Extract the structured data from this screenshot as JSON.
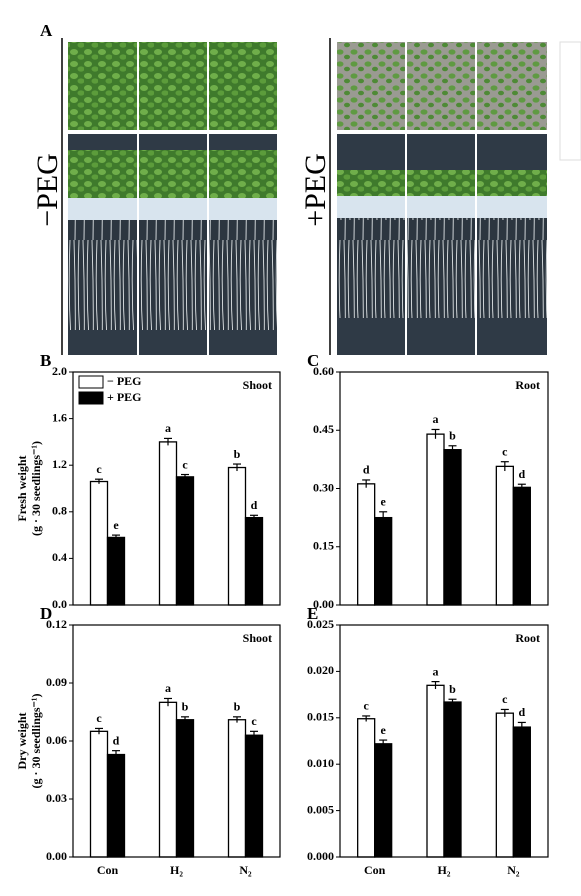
{
  "panel_a": {
    "label": "A",
    "left_label": "−PEG",
    "right_label": "+PEG"
  },
  "chart_data": [
    {
      "type": "bar",
      "panel": "B",
      "annotation": "Shoot",
      "ylabel": [
        "Fresh weight",
        "(g · 30 seedlings⁻¹)"
      ],
      "categories": [
        null,
        null,
        null
      ],
      "series": [
        {
          "name": "− PEG",
          "color": "#ffffff",
          "values": [
            1.06,
            1.4,
            1.18
          ],
          "errors": [
            0.02,
            0.03,
            0.03
          ],
          "significance": [
            "c",
            "a",
            "b"
          ]
        },
        {
          "name": "+ PEG",
          "color": "#000000",
          "values": [
            0.58,
            1.1,
            0.75
          ],
          "errors": [
            0.02,
            0.02,
            0.02
          ],
          "significance": [
            "e",
            "c",
            "d"
          ]
        }
      ],
      "ylim": [
        0,
        2.0
      ],
      "yticks": [
        {
          "value": 0,
          "label": "0.0"
        },
        0.4,
        0.8,
        1.2,
        1.6,
        {
          "value": 2.0,
          "label": "2.0"
        }
      ],
      "legend": "upper left"
    },
    {
      "type": "bar",
      "panel": "C",
      "annotation": "Root",
      "categories": [
        null,
        null,
        null
      ],
      "series": [
        {
          "color": "#ffffff",
          "values": [
            0.312,
            0.44,
            0.357
          ],
          "errors": [
            0.01,
            0.012,
            0.012
          ],
          "significance": [
            "d",
            "a",
            "c"
          ]
        },
        {
          "color": "#000000",
          "values": [
            0.225,
            0.4,
            0.303
          ],
          "errors": [
            0.015,
            0.01,
            0.008
          ],
          "significance": [
            "e",
            "b",
            "d"
          ]
        }
      ],
      "ylim": [
        0,
        0.6
      ],
      "yticks": [
        {
          "value": 0,
          "label": "0.00"
        },
        0.15,
        {
          "value": 0.3,
          "label": "0.30"
        },
        0.45,
        {
          "value": 0.6,
          "label": "0.60"
        }
      ]
    },
    {
      "type": "bar",
      "panel": "D",
      "annotation": "Shoot",
      "ylabel": [
        "Dry weight",
        "(g · 30 seedlings⁻¹)"
      ],
      "categories": [
        "Con",
        "H₂",
        "N₂"
      ],
      "series": [
        {
          "color": "#ffffff",
          "values": [
            0.065,
            0.08,
            0.071
          ],
          "errors": [
            0.0015,
            0.002,
            0.0015
          ],
          "significance": [
            "c",
            "a",
            "b"
          ]
        },
        {
          "color": "#000000",
          "values": [
            0.053,
            0.071,
            0.063
          ],
          "errors": [
            0.002,
            0.0015,
            0.002
          ],
          "significance": [
            "d",
            "b",
            "c"
          ]
        }
      ],
      "ylim": [
        0,
        0.12
      ],
      "yticks": [
        {
          "value": 0,
          "label": "0.00"
        },
        0.03,
        0.06,
        0.09,
        0.12
      ]
    },
    {
      "type": "bar",
      "panel": "E",
      "annotation": "Root",
      "categories": [
        "Con",
        "H₂",
        "N₂"
      ],
      "series": [
        {
          "color": "#ffffff",
          "values": [
            0.0149,
            0.0185,
            0.0155
          ],
          "errors": [
            0.0003,
            0.0004,
            0.0004
          ],
          "significance": [
            "c",
            "a",
            "c"
          ]
        },
        {
          "color": "#000000",
          "values": [
            0.0122,
            0.0167,
            0.014
          ],
          "errors": [
            0.0004,
            0.0003,
            0.0005
          ],
          "significance": [
            "e",
            "b",
            "d"
          ]
        }
      ],
      "ylim": [
        0,
        0.025
      ],
      "yticks": [
        {
          "value": 0,
          "label": "0.000"
        },
        0.005,
        {
          "value": 0.01,
          "label": "0.010"
        },
        0.015,
        {
          "value": 0.02,
          "label": "0.020"
        },
        0.025
      ]
    }
  ]
}
